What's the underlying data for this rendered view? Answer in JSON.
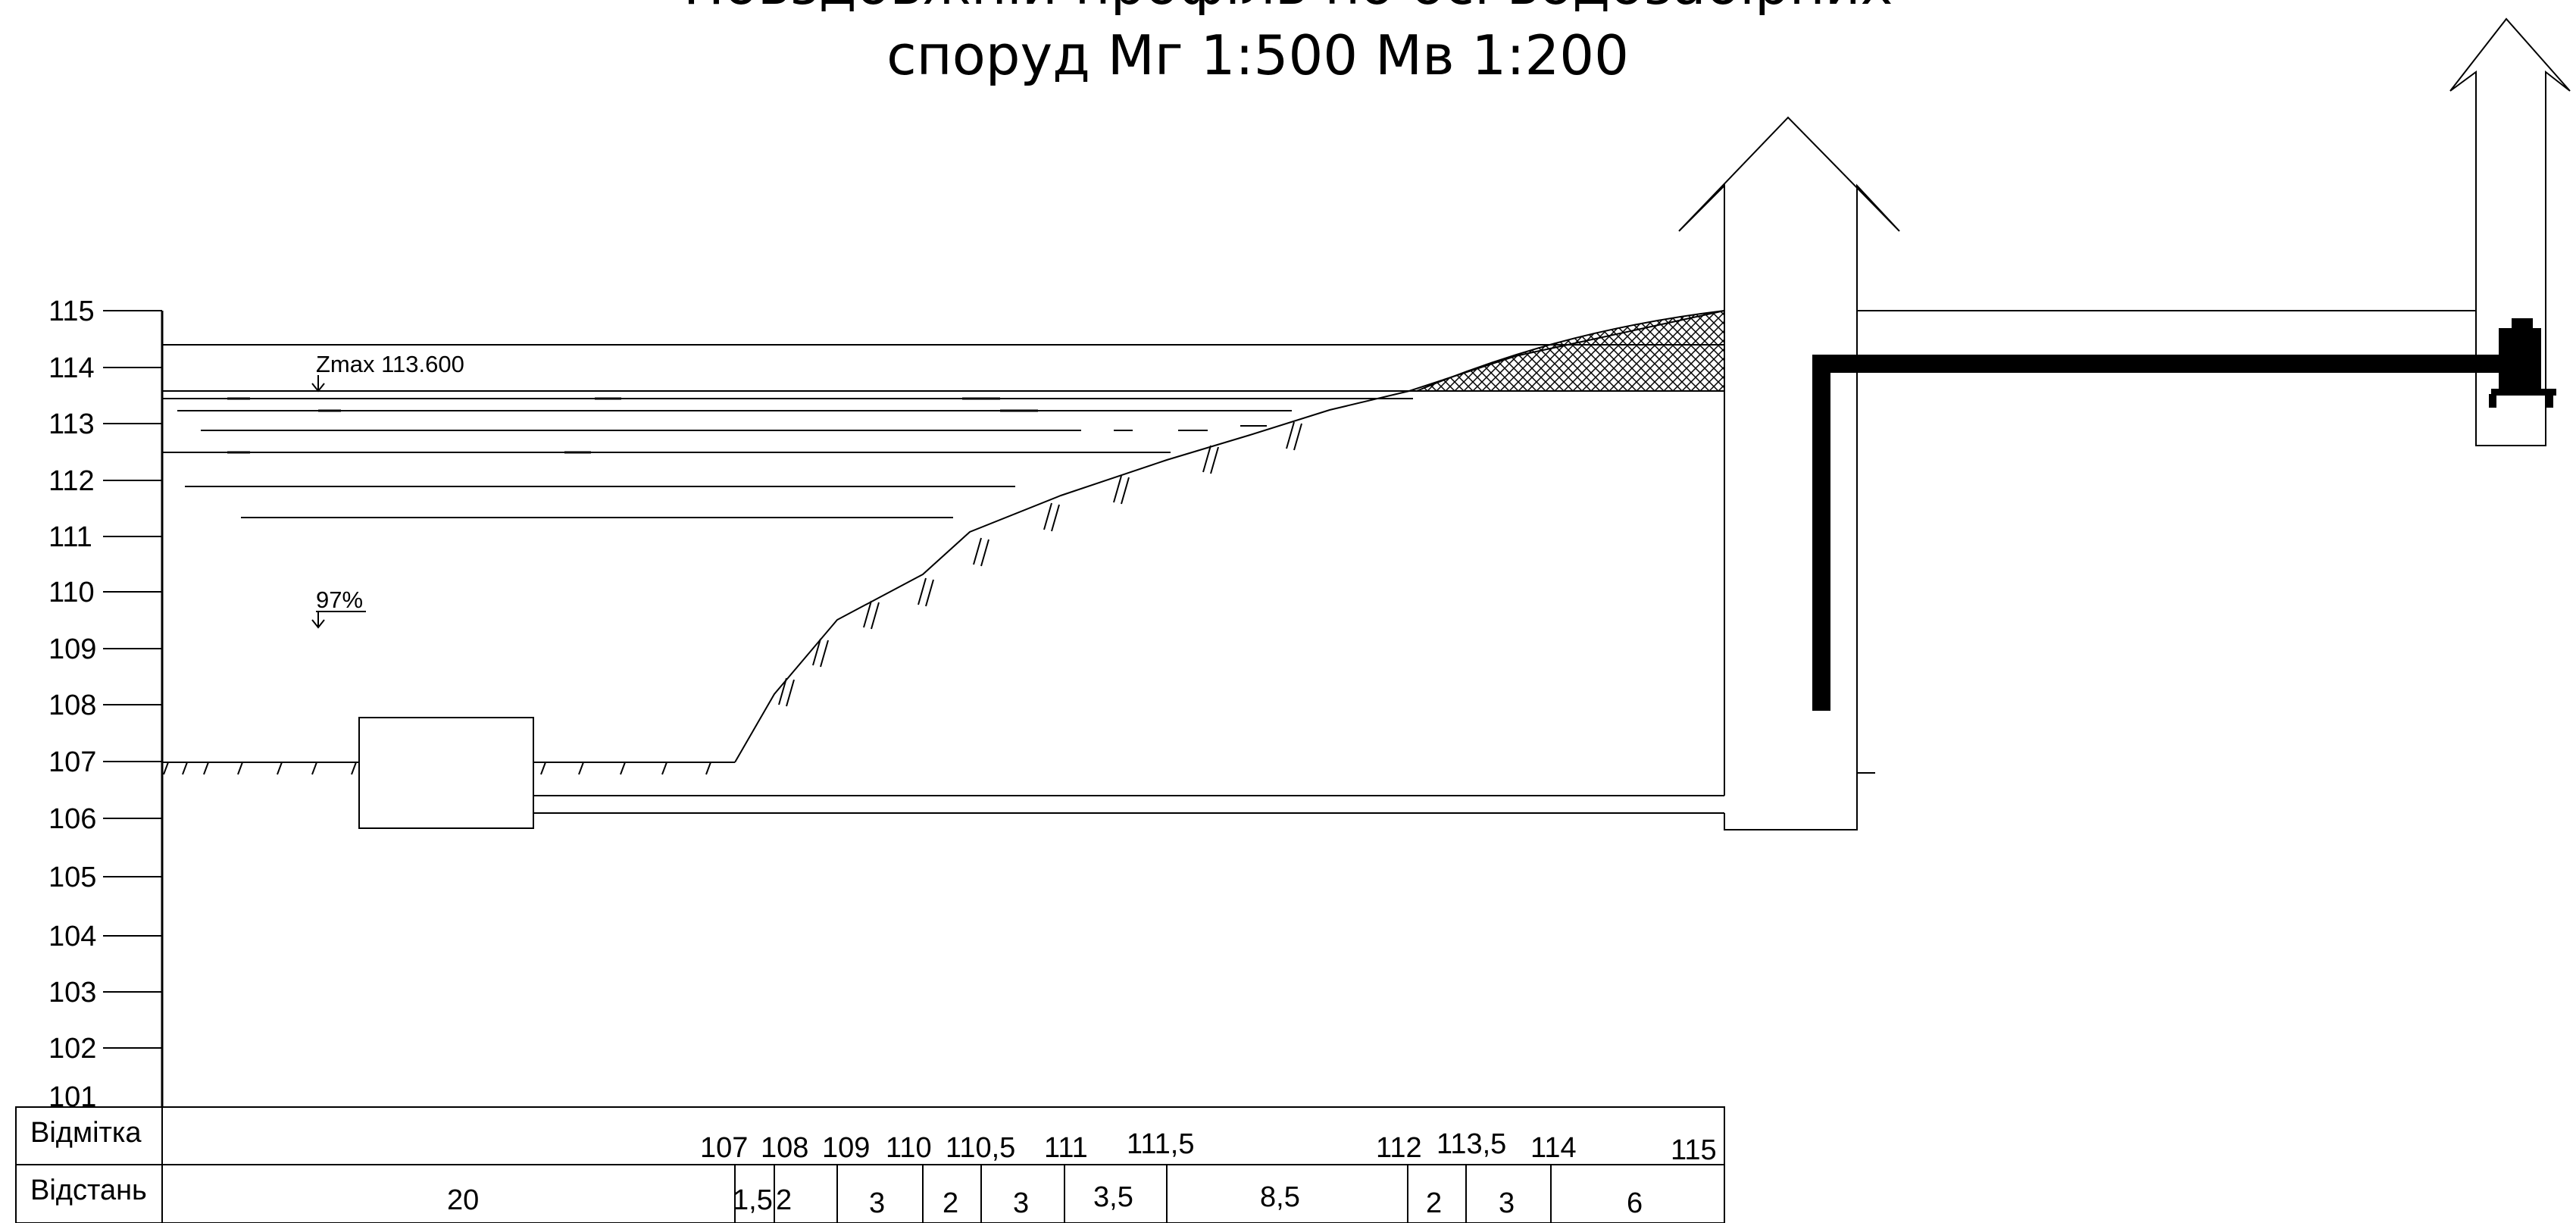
{
  "title": {
    "line1": "Повздовжній профіль по осі водозабірних",
    "line2": "споруд Мг 1:500 Мв 1:200"
  },
  "annotations": {
    "zmax": "Zmax 113.600",
    "percent": "97%"
  },
  "y_axis": {
    "labels": [
      "115",
      "114",
      "113",
      "112",
      "111",
      "110",
      "109",
      "108",
      "107",
      "106",
      "105",
      "104",
      "103",
      "102",
      "101"
    ]
  },
  "table": {
    "row_elevation_label": "Відмітка",
    "row_distance_label": "Відстань",
    "elevations": [
      "107",
      "108",
      "109",
      "110",
      "110,5",
      "111",
      "111,5",
      "112",
      "113,5",
      "114",
      "115"
    ],
    "distances": [
      "20",
      "1,5",
      "2",
      "3",
      "2",
      "3",
      "3,5",
      "8,5",
      "2",
      "3",
      "6"
    ]
  },
  "colors": {
    "line": "#000000",
    "background": "#ffffff"
  }
}
